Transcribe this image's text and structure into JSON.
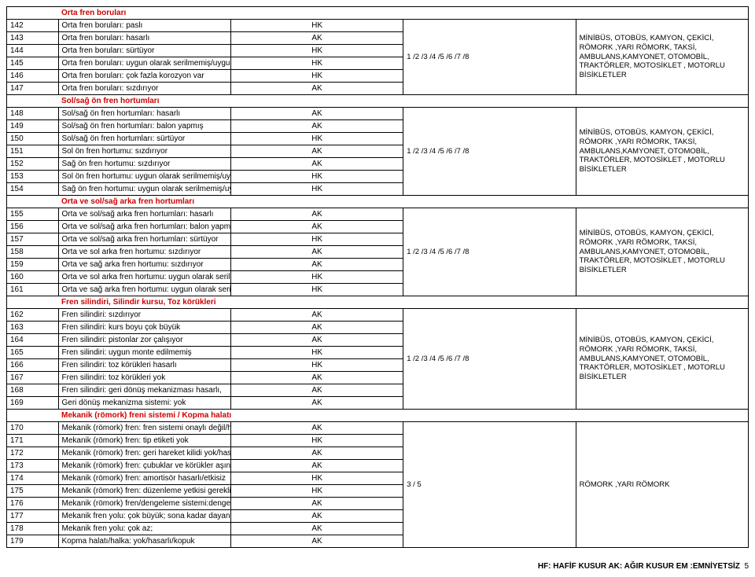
{
  "footer": {
    "left": "HF: HAFİF KUSUR AK: AĞIR KUSUR  EM :EMNİYETSİZ",
    "page": "5"
  },
  "vehicle_text_full": "MİNİBÜS, OTOBÜS, KAMYON, ÇEKİCİ, RÖMORK ,YARI RÖMORK, TAKSİ, AMBULANS,KAMYONET, OTOMOBİL, TRAKTÖRLER, MOTOSİKLET , MOTORLU BİSİKLETLER",
  "vehicle_text_romork": "RÖMORK ,YARI RÖMORK",
  "ref_178": "1 /2 /3 /4 /5 /6 /7 /8",
  "ref_35": "3 / 5",
  "sections": [
    {
      "title": "Orta fren boruları",
      "ref": "ref_178",
      "veh": "vehicle_text_full",
      "rows": [
        {
          "n": "142",
          "desc": "Orta fren boruları: paslı",
          "code": "HK"
        },
        {
          "n": "143",
          "desc": "Orta fren boruları: hasarlı",
          "code": "AK"
        },
        {
          "n": "144",
          "desc": "Orta fren boruları: sürtüyor",
          "code": "HK"
        },
        {
          "n": "145",
          "desc": "Orta fren boruları: uygun olarak serilmemiş/uygun monte edilmemiş",
          "code": "HK"
        },
        {
          "n": "146",
          "desc": "Orta fren boruları: çok fazla korozyon var",
          "code": "HK"
        },
        {
          "n": "147",
          "desc": "Orta fren boruları: sızdırıyor",
          "code": "AK"
        }
      ]
    },
    {
      "title": "Sol/sağ ön fren hortumları",
      "ref": "ref_178",
      "veh": "vehicle_text_full",
      "rows": [
        {
          "n": "148",
          "desc": "Sol/sağ ön fren hortumları: hasarlı",
          "code": "AK"
        },
        {
          "n": "149",
          "desc": "Sol/sağ ön fren hortumları: balon yapmış",
          "code": "AK"
        },
        {
          "n": "150",
          "desc": "Sol/sağ ön fren hortumları: sürtüyor",
          "code": "HK"
        },
        {
          "n": "151",
          "desc": "Sol ön fren hortumu: sızdırıyor",
          "code": "AK"
        },
        {
          "n": "152",
          "desc": "Sağ ön fren hortumu: sızdırıyor",
          "code": "AK"
        },
        {
          "n": "153",
          "desc": "Sol ön fren hortumu: uygun olarak serilmemiş/uygun monte edilmemiş/dönük",
          "code": "HK"
        },
        {
          "n": "154",
          "desc": "Sağ ön fren hortumu: uygun olarak serilmemiş/uygun monte edilmemiş/dönük",
          "code": "HK"
        }
      ]
    },
    {
      "title": "Orta ve sol/sağ arka fren hortumları",
      "ref": "ref_178",
      "veh": "vehicle_text_full",
      "rows": [
        {
          "n": "155",
          "desc": "Orta ve sol/sağ arka fren hortumları: hasarlı",
          "code": "AK"
        },
        {
          "n": "156",
          "desc": "Orta ve sol/sağ arka fren hortumları: balon yapmış",
          "code": "AK"
        },
        {
          "n": "157",
          "desc": "Orta ve sol/sağ arka fren hortumları: sürtüyor",
          "code": "HK"
        },
        {
          "n": "158",
          "desc": "Orta ve sol arka fren hortumu: sızdırıyor",
          "code": "AK"
        },
        {
          "n": "159",
          "desc": "Orta ve sağ arka fren hortumu: sızdırıyor",
          "code": "AK"
        },
        {
          "n": "160",
          "desc": "Orta ve sol arka fren hortumu: uygun olarak serilmemiş/ uygun monte edilmemiş/dönük",
          "code": "HK"
        },
        {
          "n": "161",
          "desc": "Orta ve sağ arka fren hortumu: uygun olarak serilmemiş/ uygun monte edilmemiş/dönük",
          "code": "HK"
        }
      ]
    },
    {
      "title": "Fren silindiri, Silindir kursu, Toz körükleri",
      "ref": "ref_178",
      "veh": "vehicle_text_full",
      "rows": [
        {
          "n": "162",
          "desc": "Fren silindiri: sızdırıyor",
          "code": "AK"
        },
        {
          "n": "163",
          "desc": "Fren silindiri: kurs boyu çok büyük",
          "code": "AK"
        },
        {
          "n": "164",
          "desc": "Fren silindiri: pistonlar zor çalışıyor",
          "code": "AK"
        },
        {
          "n": "165",
          "desc": "Fren silindiri: uygun monte edilmemiş",
          "code": "HK"
        },
        {
          "n": "166",
          "desc": "Fren silindiri:  toz körükleri hasarlı",
          "code": "HK"
        },
        {
          "n": "167",
          "desc": "Fren silindiri:  toz körükleri yok",
          "code": "AK"
        },
        {
          "n": "168",
          "desc": "Fren silindiri: geri dönüş mekanizması hasarlı,",
          "code": "AK"
        },
        {
          "n": "169",
          "desc": "Geri dönüş mekanizma sistemi: yok",
          "code": "AK"
        }
      ]
    },
    {
      "title": "Mekanik (römork) freni sistemi / Kopma halatı",
      "ref": "ref_35",
      "veh": "vehicle_text_romork",
      "rows": [
        {
          "n": "170",
          "desc": "Mekanik (römork) fren: fren sistemi onaylı değil/hasarlı",
          "code": "AK"
        },
        {
          "n": "171",
          "desc": "Mekanik (römork) fren: tip etiketi yok",
          "code": "HK"
        },
        {
          "n": "172",
          "desc": "Mekanik (römork) fren: geri hareket kilidi yok/hasarlı",
          "code": "AK"
        },
        {
          "n": "173",
          "desc": "Mekanik (römork) fren: çubuklar ve körükler aşınmış",
          "code": "AK"
        },
        {
          "n": "174",
          "desc": "Mekanik (römork) fren: amortisör hasarlı/etkisiz",
          "code": "HK"
        },
        {
          "n": "175",
          "desc": "Mekanik (römork) fren: düzenleme yetkisi gerekli/hatalı",
          "code": "HK"
        },
        {
          "n": "176",
          "desc": "Mekanik (römork) fren/dengeleme sistemi:dengesiz çalışıyor",
          "code": "AK"
        },
        {
          "n": "177",
          "desc": "Mekanik fren yolu: çok büyük; sona kadar dayanıyor (vuruyor)",
          "code": "AK"
        },
        {
          "n": "178",
          "desc": "Mekanik fren yolu: çok az;",
          "code": "AK"
        },
        {
          "n": "179",
          "desc": "Kopma halatı/halka: yok/hasarlı/kopuk",
          "code": "AK"
        }
      ]
    }
  ]
}
